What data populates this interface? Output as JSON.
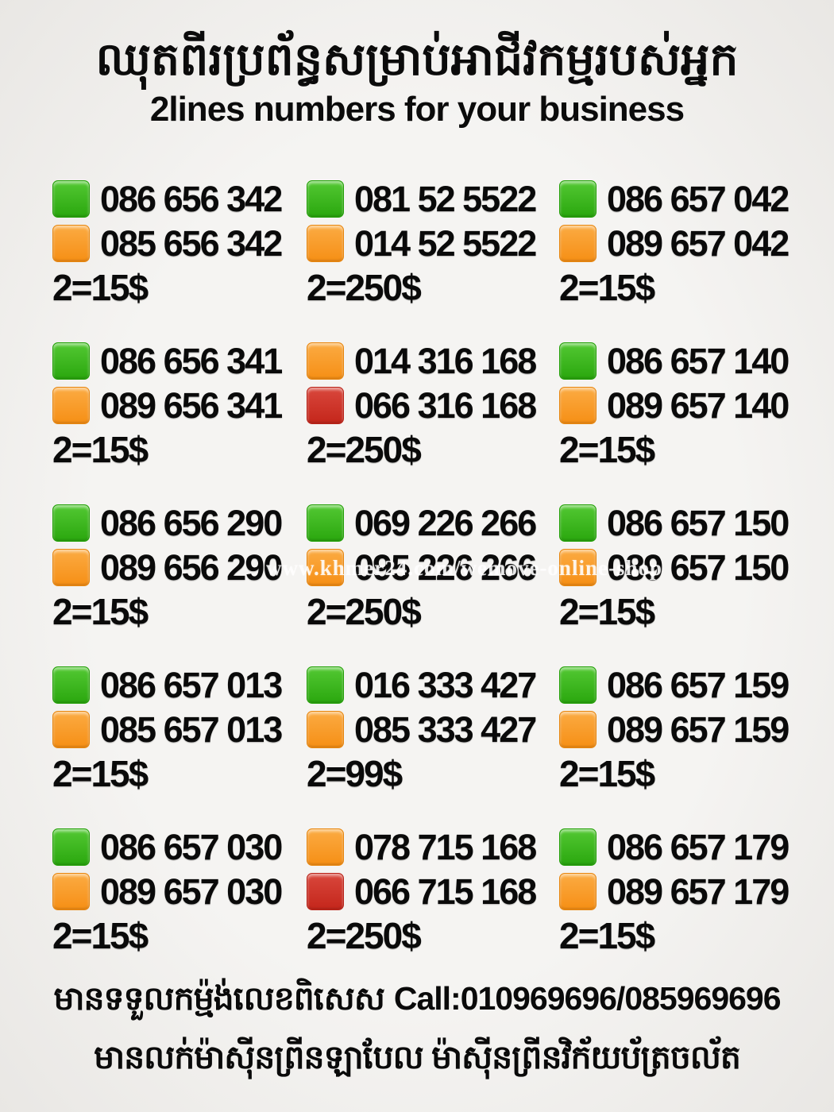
{
  "header": {
    "title_khmer": "ឈុតពីរប្រព័ន្ធសម្រាប់អាជីវកម្មរបស់អ្នក",
    "title_english": "2lines numbers for your business"
  },
  "colors": {
    "green": {
      "top": "#53c833",
      "bottom": "#2aa70e",
      "border": "#23a007"
    },
    "orange": {
      "top": "#fbab43",
      "bottom": "#f68f15",
      "border": "#e8860e"
    },
    "red": {
      "top": "#d9473c",
      "bottom": "#c4261b",
      "border": "#b92218"
    },
    "background": "#f2f1ef"
  },
  "watermark": "www.khmer24.com/wemove-online-shop",
  "listings": [
    {
      "pairs": [
        {
          "color": "green",
          "number": "086 656 342"
        },
        {
          "color": "orange",
          "number": "085 656 342"
        }
      ],
      "price": "2=15$"
    },
    {
      "pairs": [
        {
          "color": "green",
          "number": "081 52 5522"
        },
        {
          "color": "orange",
          "number": "014 52 5522"
        }
      ],
      "price": "2=250$"
    },
    {
      "pairs": [
        {
          "color": "green",
          "number": "086 657 042"
        },
        {
          "color": "orange",
          "number": "089 657 042"
        }
      ],
      "price": "2=15$"
    },
    {
      "pairs": [
        {
          "color": "green",
          "number": "086 656 341"
        },
        {
          "color": "orange",
          "number": "089 656 341"
        }
      ],
      "price": "2=15$"
    },
    {
      "pairs": [
        {
          "color": "orange",
          "number": "014 316 168"
        },
        {
          "color": "red",
          "number": "066 316 168"
        }
      ],
      "price": "2=250$"
    },
    {
      "pairs": [
        {
          "color": "green",
          "number": "086 657 140"
        },
        {
          "color": "orange",
          "number": "089 657 140"
        }
      ],
      "price": "2=15$"
    },
    {
      "pairs": [
        {
          "color": "green",
          "number": "086 656 290"
        },
        {
          "color": "orange",
          "number": "089 656 290"
        }
      ],
      "price": "2=15$"
    },
    {
      "pairs": [
        {
          "color": "green",
          "number": "069 226 266"
        },
        {
          "color": "orange",
          "number": "095 226 266"
        }
      ],
      "price": "2=250$"
    },
    {
      "pairs": [
        {
          "color": "green",
          "number": "086 657 150"
        },
        {
          "color": "orange",
          "number": "089 657 150"
        }
      ],
      "price": "2=15$"
    },
    {
      "pairs": [
        {
          "color": "green",
          "number": "086 657 013"
        },
        {
          "color": "orange",
          "number": "085 657 013"
        }
      ],
      "price": "2=15$"
    },
    {
      "pairs": [
        {
          "color": "green",
          "number": "016 333 427"
        },
        {
          "color": "orange",
          "number": "085 333 427"
        }
      ],
      "price": "2=99$"
    },
    {
      "pairs": [
        {
          "color": "green",
          "number": "086 657 159"
        },
        {
          "color": "orange",
          "number": "089 657 159"
        }
      ],
      "price": "2=15$"
    },
    {
      "pairs": [
        {
          "color": "green",
          "number": "086 657 030"
        },
        {
          "color": "orange",
          "number": "089 657 030"
        }
      ],
      "price": "2=15$"
    },
    {
      "pairs": [
        {
          "color": "orange",
          "number": "078 715 168"
        },
        {
          "color": "red",
          "number": "066 715 168"
        }
      ],
      "price": "2=250$"
    },
    {
      "pairs": [
        {
          "color": "green",
          "number": "086 657 179"
        },
        {
          "color": "orange",
          "number": "089 657 179"
        }
      ],
      "price": "2=15$"
    }
  ],
  "footer": {
    "line1_khmer": "មានទទួលកម្ម៉ង់លេខពិសេស",
    "line1_call": "Call:010969696/085969696",
    "line2_khmer": "មានលក់ម៉ាស៊ីនព្រីនឡាបែល ម៉ាស៊ីនព្រីនវិក័យប័ត្រចល័ត"
  }
}
